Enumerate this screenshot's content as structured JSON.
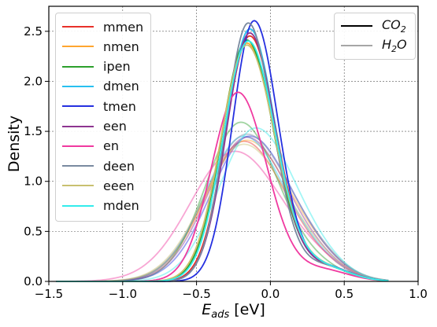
{
  "chart_data": {
    "type": "line",
    "xlabel": "E_ads [eV]",
    "xlabel_parts": {
      "base": "E",
      "sub": "ads",
      "unit": "[eV]"
    },
    "ylabel": "Density",
    "xlim": [
      -1.5,
      1.0
    ],
    "ylim": [
      0.0,
      2.75
    ],
    "x_ticks": [
      "−1.5",
      "−1.0",
      "−0.5",
      "0.0",
      "0.5",
      "1.0"
    ],
    "x_tick_values": [
      -1.5,
      -1.0,
      -0.5,
      0.0,
      0.5,
      1.0
    ],
    "y_ticks": [
      "0.0",
      "0.5",
      "1.0",
      "1.5",
      "2.0",
      "2.5"
    ],
    "y_tick_values": [
      0.0,
      0.5,
      1.0,
      1.5,
      2.0,
      2.5
    ],
    "grid": true,
    "legend_placement": "upper-left",
    "style_legend_placement": "upper-right",
    "style_legend": [
      {
        "label": "CO",
        "sub": "2",
        "color": "#000000",
        "represents": "solid"
      },
      {
        "label": "H",
        "sub": "2",
        "tail": "O",
        "color": "#a6a6a6",
        "represents": "faded"
      }
    ],
    "series": [
      {
        "name": "mmen",
        "color": "#e8302a",
        "co2": {
          "peak": 2.45,
          "center": -0.14,
          "width": 0.155
        },
        "h2o": {
          "peak": 1.4,
          "center": -0.18,
          "width": 0.21
        }
      },
      {
        "name": "nmen",
        "color": "#ffa630",
        "co2": {
          "peak": 2.38,
          "center": -0.16,
          "width": 0.165
        },
        "h2o": {
          "peak": 1.41,
          "center": -0.16,
          "width": 0.22
        }
      },
      {
        "name": "ipen",
        "color": "#2ca02c",
        "co2": {
          "peak": 2.41,
          "center": -0.16,
          "width": 0.16
        },
        "h2o": {
          "peak": 1.59,
          "center": -0.2,
          "width": 0.19
        }
      },
      {
        "name": "dmen",
        "color": "#28c0f0",
        "co2": {
          "peak": 2.52,
          "center": -0.14,
          "width": 0.15
        },
        "h2o": {
          "peak": 1.45,
          "center": -0.18,
          "width": 0.21
        }
      },
      {
        "name": "tmen",
        "color": "#2530e0",
        "co2": {
          "peak": 2.6,
          "center": -0.11,
          "width": 0.14
        },
        "h2o": {
          "peak": 1.45,
          "center": -0.14,
          "width": 0.21
        }
      },
      {
        "name": "een",
        "color": "#8e3590",
        "co2": {
          "peak": 2.48,
          "center": -0.14,
          "width": 0.15
        },
        "h2o": {
          "peak": 1.44,
          "center": -0.16,
          "width": 0.21
        }
      },
      {
        "name": "en",
        "color": "#f03aa0",
        "co2": {
          "peak": 1.89,
          "center": -0.22,
          "width": 0.17
        },
        "h2o": {
          "peak": 1.3,
          "center": -0.24,
          "width": 0.24
        }
      },
      {
        "name": "deen",
        "color": "#7a8aa0",
        "co2": {
          "peak": 2.58,
          "center": -0.15,
          "width": 0.145
        },
        "h2o": {
          "peak": 1.47,
          "center": -0.16,
          "width": 0.22
        }
      },
      {
        "name": "eeen",
        "color": "#c8c070",
        "co2": {
          "peak": 2.36,
          "center": -0.16,
          "width": 0.165
        },
        "h2o": {
          "peak": 1.37,
          "center": -0.18,
          "width": 0.22
        }
      },
      {
        "name": "mden",
        "color": "#33ecec",
        "co2": {
          "peak": 2.4,
          "center": -0.15,
          "width": 0.16
        },
        "h2o": {
          "peak": 1.53,
          "center": -0.1,
          "width": 0.2
        }
      }
    ]
  }
}
